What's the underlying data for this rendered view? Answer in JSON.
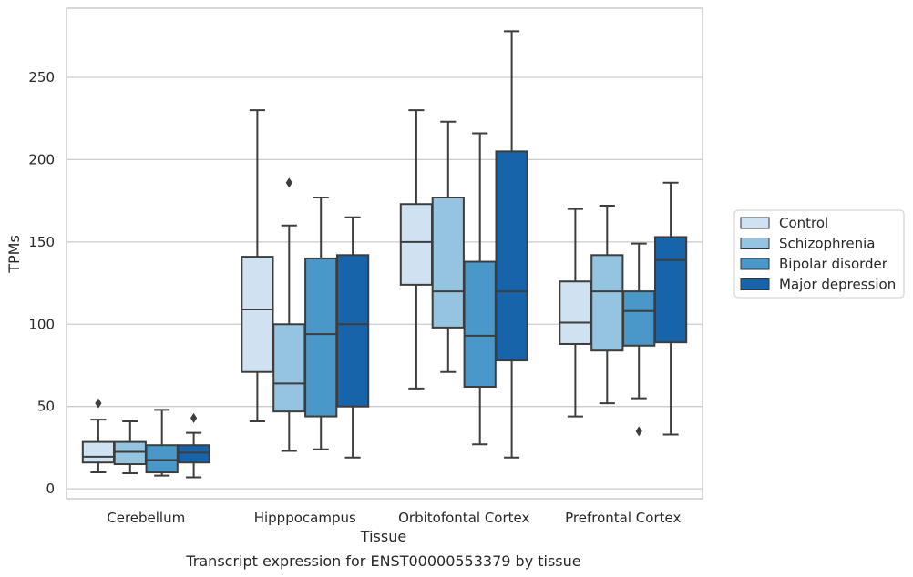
{
  "caption": "Transcript expression for ENST00000553379 by tissue",
  "chart_data": {
    "type": "box",
    "xlabel": "Tissue",
    "ylabel": "TPMs",
    "ylim": [
      -6,
      292
    ],
    "yticks": [
      0,
      50,
      100,
      150,
      200,
      250
    ],
    "grid": "horizontal",
    "legend_position": "right",
    "categories": [
      "Cerebellum",
      "Hipppocampus",
      "Orbitofontal Cortex",
      "Prefrontal Cortex"
    ],
    "series": [
      {
        "name": "Control",
        "color": "#d0e1f2",
        "boxes": [
          {
            "whisker_low": 10,
            "q1": 16,
            "median": 19.5,
            "q3": 28.5,
            "whisker_high": 42,
            "outliers": [
              52
            ]
          },
          {
            "whisker_low": 41,
            "q1": 71,
            "median": 109,
            "q3": 141,
            "whisker_high": 230,
            "outliers": []
          },
          {
            "whisker_low": 61,
            "q1": 124,
            "median": 150,
            "q3": 173,
            "whisker_high": 230,
            "outliers": []
          },
          {
            "whisker_low": 44,
            "q1": 88,
            "median": 101,
            "q3": 126,
            "whisker_high": 170,
            "outliers": []
          }
        ]
      },
      {
        "name": "Schizophrenia",
        "color": "#94c4df",
        "boxes": [
          {
            "whisker_low": 9.5,
            "q1": 15,
            "median": 22.5,
            "q3": 28.5,
            "whisker_high": 41,
            "outliers": []
          },
          {
            "whisker_low": 23,
            "q1": 47,
            "median": 64,
            "q3": 100,
            "whisker_high": 160,
            "outliers": [
              186
            ]
          },
          {
            "whisker_low": 71,
            "q1": 98,
            "median": 120,
            "q3": 177,
            "whisker_high": 223,
            "outliers": []
          },
          {
            "whisker_low": 52,
            "q1": 84,
            "median": 120,
            "q3": 142,
            "whisker_high": 172,
            "outliers": []
          }
        ]
      },
      {
        "name": "Bipolar disorder",
        "color": "#4a98c9",
        "boxes": [
          {
            "whisker_low": 8,
            "q1": 10,
            "median": 17.5,
            "q3": 26.5,
            "whisker_high": 48,
            "outliers": []
          },
          {
            "whisker_low": 24,
            "q1": 44,
            "median": 94,
            "q3": 140,
            "whisker_high": 177,
            "outliers": []
          },
          {
            "whisker_low": 27,
            "q1": 62,
            "median": 93,
            "q3": 138,
            "whisker_high": 216,
            "outliers": []
          },
          {
            "whisker_low": 55,
            "q1": 87,
            "median": 108,
            "q3": 120,
            "whisker_high": 149,
            "outliers": [
              35
            ]
          }
        ]
      },
      {
        "name": "Major depression",
        "color": "#1764ab",
        "boxes": [
          {
            "whisker_low": 7,
            "q1": 16,
            "median": 22,
            "q3": 26.5,
            "whisker_high": 34,
            "outliers": [
              43
            ]
          },
          {
            "whisker_low": 19,
            "q1": 50,
            "median": 100,
            "q3": 142,
            "whisker_high": 165,
            "outliers": []
          },
          {
            "whisker_low": 19,
            "q1": 78,
            "median": 120,
            "q3": 205,
            "whisker_high": 278,
            "outliers": []
          },
          {
            "whisker_low": 33,
            "q1": 89,
            "median": 139,
            "q3": 153,
            "whisker_high": 186,
            "outliers": []
          }
        ]
      }
    ]
  }
}
